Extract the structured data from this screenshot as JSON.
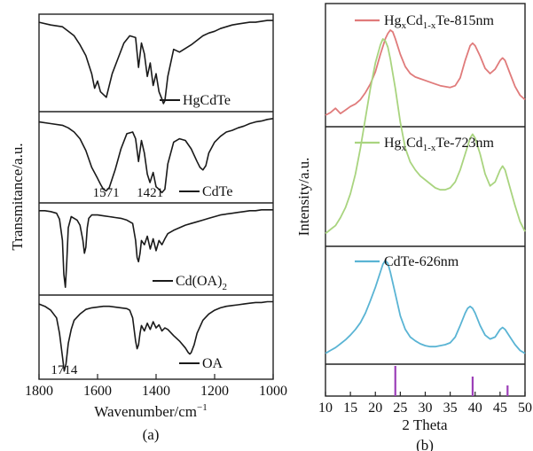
{
  "chart_data": [
    {
      "panel": "(a)",
      "type": "line",
      "xlabel": "Wavenumber/cm",
      "xlabel_sup": "−1",
      "ylabel": "Transmitance/a.u.",
      "xlim": [
        1800,
        1000
      ],
      "xticks": [
        1800,
        1600,
        1400,
        1200,
        1000
      ],
      "grid": false,
      "series": [
        {
          "name": "HgCdTe",
          "color": "#1a1a1a",
          "x": [
            1800,
            1760,
            1720,
            1700,
            1680,
            1660,
            1640,
            1620,
            1610,
            1600,
            1590,
            1570,
            1550,
            1530,
            1510,
            1490,
            1470,
            1460,
            1450,
            1440,
            1430,
            1420,
            1410,
            1400,
            1390,
            1380,
            1375,
            1370,
            1360,
            1340,
            1320,
            1300,
            1280,
            1260,
            1240,
            1220,
            1200,
            1180,
            1160,
            1140,
            1120,
            1100,
            1080,
            1060,
            1040,
            1020,
            1000
          ],
          "y": [
            0.95,
            0.92,
            0.9,
            0.85,
            0.8,
            0.7,
            0.58,
            0.38,
            0.22,
            0.3,
            0.18,
            0.12,
            0.38,
            0.55,
            0.72,
            0.8,
            0.78,
            0.45,
            0.72,
            0.6,
            0.35,
            0.5,
            0.25,
            0.38,
            0.18,
            0.1,
            0.05,
            0.08,
            0.35,
            0.65,
            0.62,
            0.66,
            0.7,
            0.75,
            0.8,
            0.83,
            0.85,
            0.88,
            0.9,
            0.92,
            0.93,
            0.94,
            0.95,
            0.95,
            0.96,
            0.97,
            0.97
          ]
        },
        {
          "name": "CdTe",
          "color": "#1a1a1a",
          "x": [
            1800,
            1760,
            1720,
            1700,
            1680,
            1660,
            1640,
            1620,
            1600,
            1590,
            1580,
            1571,
            1560,
            1540,
            1520,
            1500,
            1480,
            1470,
            1460,
            1450,
            1440,
            1430,
            1421,
            1410,
            1400,
            1390,
            1380,
            1370,
            1360,
            1340,
            1320,
            1300,
            1280,
            1260,
            1250,
            1240,
            1230,
            1220,
            1200,
            1180,
            1160,
            1140,
            1120,
            1100,
            1080,
            1060,
            1040,
            1020,
            1000
          ],
          "y": [
            0.92,
            0.9,
            0.88,
            0.85,
            0.8,
            0.72,
            0.58,
            0.38,
            0.25,
            0.18,
            0.12,
            0.1,
            0.14,
            0.35,
            0.6,
            0.78,
            0.8,
            0.72,
            0.45,
            0.7,
            0.55,
            0.3,
            0.2,
            0.32,
            0.15,
            0.12,
            0.08,
            0.12,
            0.42,
            0.68,
            0.72,
            0.7,
            0.6,
            0.45,
            0.38,
            0.35,
            0.4,
            0.55,
            0.68,
            0.75,
            0.8,
            0.82,
            0.85,
            0.87,
            0.9,
            0.92,
            0.93,
            0.95,
            0.96
          ]
        },
        {
          "name": "Cd(OA)₂",
          "color": "#1a1a1a",
          "x": [
            1800,
            1780,
            1760,
            1740,
            1730,
            1720,
            1715,
            1710,
            1705,
            1700,
            1690,
            1680,
            1670,
            1660,
            1650,
            1645,
            1640,
            1635,
            1630,
            1620,
            1600,
            1580,
            1560,
            1540,
            1520,
            1500,
            1480,
            1470,
            1465,
            1460,
            1455,
            1450,
            1440,
            1430,
            1420,
            1410,
            1400,
            1390,
            1380,
            1370,
            1360,
            1340,
            1320,
            1300,
            1280,
            1260,
            1240,
            1220,
            1200,
            1180,
            1160,
            1140,
            1120,
            1100,
            1080,
            1060,
            1040,
            1020,
            1000
          ],
          "y": [
            0.95,
            0.95,
            0.94,
            0.92,
            0.85,
            0.6,
            0.2,
            0.05,
            0.35,
            0.75,
            0.88,
            0.86,
            0.84,
            0.78,
            0.6,
            0.45,
            0.52,
            0.75,
            0.86,
            0.9,
            0.9,
            0.89,
            0.88,
            0.87,
            0.86,
            0.84,
            0.8,
            0.6,
            0.4,
            0.35,
            0.45,
            0.6,
            0.55,
            0.65,
            0.5,
            0.62,
            0.48,
            0.6,
            0.55,
            0.62,
            0.68,
            0.72,
            0.75,
            0.78,
            0.8,
            0.82,
            0.84,
            0.86,
            0.88,
            0.9,
            0.91,
            0.92,
            0.93,
            0.94,
            0.95,
            0.95,
            0.96,
            0.96,
            0.96
          ]
        },
        {
          "name": "OA",
          "color": "#1a1a1a",
          "x": [
            1800,
            1780,
            1760,
            1740,
            1730,
            1720,
            1714,
            1708,
            1700,
            1690,
            1680,
            1660,
            1640,
            1620,
            1600,
            1580,
            1560,
            1540,
            1520,
            1500,
            1490,
            1480,
            1470,
            1465,
            1460,
            1455,
            1450,
            1440,
            1430,
            1420,
            1410,
            1400,
            1390,
            1380,
            1370,
            1360,
            1340,
            1320,
            1300,
            1290,
            1285,
            1280,
            1270,
            1260,
            1240,
            1220,
            1200,
            1180,
            1160,
            1140,
            1120,
            1100,
            1080,
            1060,
            1040,
            1020,
            1000
          ],
          "y": [
            0.93,
            0.9,
            0.85,
            0.75,
            0.55,
            0.25,
            0.06,
            0.15,
            0.42,
            0.6,
            0.72,
            0.8,
            0.86,
            0.88,
            0.89,
            0.9,
            0.9,
            0.89,
            0.88,
            0.87,
            0.85,
            0.75,
            0.45,
            0.35,
            0.4,
            0.55,
            0.65,
            0.58,
            0.68,
            0.6,
            0.7,
            0.62,
            0.66,
            0.58,
            0.62,
            0.6,
            0.52,
            0.45,
            0.36,
            0.3,
            0.28,
            0.3,
            0.4,
            0.55,
            0.72,
            0.8,
            0.85,
            0.88,
            0.9,
            0.91,
            0.92,
            0.93,
            0.94,
            0.95,
            0.95,
            0.96,
            0.96
          ]
        }
      ],
      "annotations": [
        {
          "text": "1571",
          "x": 1571
        },
        {
          "text": "1421",
          "x": 1421
        },
        {
          "text": "1714",
          "x": 1714
        }
      ]
    },
    {
      "panel": "(b)",
      "type": "line",
      "xlabel": "2 Theta",
      "ylabel": "Intensity/a.u.",
      "xlim": [
        10,
        50
      ],
      "xticks": [
        10,
        15,
        20,
        25,
        30,
        35,
        40,
        45,
        50
      ],
      "grid": false,
      "series": [
        {
          "name": "HgxCd1-xTe-815nm",
          "color": "#e07b7b",
          "x": [
            10,
            11,
            12,
            13,
            14,
            15,
            16,
            17,
            18,
            19,
            20,
            21,
            22,
            22.5,
            23,
            23.5,
            24,
            25,
            26,
            27,
            28,
            29,
            30,
            31,
            32,
            33,
            34,
            35,
            36,
            37,
            38,
            39,
            39.5,
            40,
            41,
            42,
            43,
            44,
            45,
            45.5,
            46,
            47,
            48,
            49,
            50
          ],
          "y": [
            0.02,
            0.05,
            0.1,
            0.04,
            0.08,
            0.12,
            0.15,
            0.2,
            0.28,
            0.38,
            0.52,
            0.72,
            0.9,
            0.96,
            1.0,
            0.98,
            0.9,
            0.72,
            0.58,
            0.5,
            0.46,
            0.44,
            0.42,
            0.4,
            0.38,
            0.36,
            0.35,
            0.34,
            0.36,
            0.45,
            0.65,
            0.82,
            0.85,
            0.82,
            0.7,
            0.56,
            0.5,
            0.55,
            0.65,
            0.68,
            0.65,
            0.5,
            0.35,
            0.25,
            0.2
          ]
        },
        {
          "name": "HgxCd1-xTe-723nm",
          "color": "#a9d47f",
          "x": [
            10,
            11,
            12,
            13,
            14,
            15,
            16,
            17,
            18,
            19,
            20,
            21,
            21.5,
            22,
            22.5,
            23,
            24,
            25,
            26,
            27,
            28,
            29,
            30,
            31,
            32,
            33,
            34,
            35,
            36,
            37,
            38,
            39,
            39.5,
            40,
            41,
            42,
            43,
            44,
            45,
            45.5,
            46,
            47,
            48,
            49,
            50
          ],
          "y": [
            0.02,
            0.04,
            0.06,
            0.1,
            0.15,
            0.22,
            0.32,
            0.45,
            0.6,
            0.75,
            0.88,
            0.97,
            1.0,
            0.99,
            0.96,
            0.9,
            0.75,
            0.58,
            0.45,
            0.38,
            0.34,
            0.31,
            0.29,
            0.27,
            0.25,
            0.24,
            0.24,
            0.25,
            0.28,
            0.34,
            0.42,
            0.5,
            0.52,
            0.5,
            0.42,
            0.32,
            0.26,
            0.28,
            0.34,
            0.36,
            0.34,
            0.25,
            0.16,
            0.08,
            0.03
          ]
        },
        {
          "name": "CdTe-626nm",
          "color": "#5ab4d4",
          "x": [
            10,
            11,
            12,
            13,
            14,
            15,
            16,
            17,
            18,
            19,
            20,
            21,
            21.5,
            22,
            22.5,
            23,
            24,
            25,
            26,
            27,
            28,
            29,
            30,
            31,
            32,
            33,
            34,
            35,
            36,
            37,
            38,
            38.5,
            39,
            39.5,
            40,
            41,
            42,
            43,
            44,
            45,
            45.5,
            46,
            47,
            48,
            49,
            50
          ],
          "y": [
            0.03,
            0.06,
            0.09,
            0.13,
            0.17,
            0.22,
            0.28,
            0.35,
            0.45,
            0.58,
            0.72,
            0.88,
            0.96,
            1.0,
            0.97,
            0.88,
            0.65,
            0.42,
            0.28,
            0.2,
            0.16,
            0.13,
            0.11,
            0.1,
            0.1,
            0.11,
            0.12,
            0.14,
            0.2,
            0.32,
            0.45,
            0.5,
            0.52,
            0.5,
            0.45,
            0.32,
            0.22,
            0.18,
            0.2,
            0.28,
            0.3,
            0.28,
            0.2,
            0.12,
            0.06,
            0.03
          ]
        }
      ],
      "reference_lines": {
        "color": "#9c3fb8",
        "positions": [
          24.0,
          39.5,
          46.5
        ]
      }
    }
  ],
  "panel_labels": {
    "a": "(a)",
    "b": "(b)"
  }
}
